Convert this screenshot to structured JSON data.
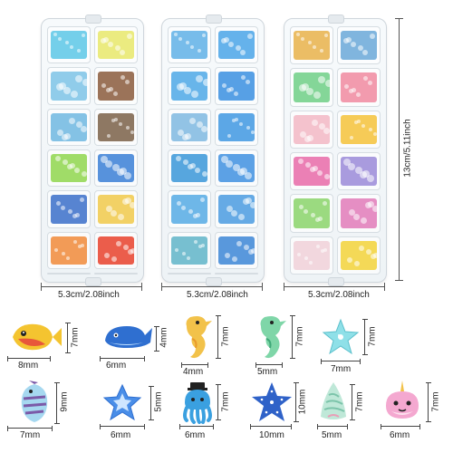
{
  "dimensions": {
    "box_width_1": "5.3cm/2.08inch",
    "box_width_2": "5.3cm/2.08inch",
    "box_width_3": "5.3cm/2.08inch",
    "box_height": "13cm/5.11inch"
  },
  "boxes": [
    {
      "cells": [
        "#5cc7e6",
        "#e8e86a",
        "#7cc3e6",
        "#8a5a3c",
        "#6fb7e0",
        "#7a6048",
        "#8fd64d",
        "#3a7fd6",
        "#3a6fc9",
        "#f0c94a",
        "#f08a3a",
        "#e8412c",
        "#3f8f6a",
        "#6fbf7a"
      ]
    },
    {
      "cells": [
        "#5fb0e6",
        "#4aa5e8",
        "#4da8e6",
        "#3a8fe0",
        "#7fb8e0",
        "#3f98e2",
        "#3a96d8",
        "#3f90e0",
        "#55aae4",
        "#4a9be0",
        "#5fb4c8",
        "#3c86d6",
        "#3f8ad8",
        "#2f78cf"
      ]
    },
    {
      "cells": [
        "#e8b24a",
        "#6aa8d8",
        "#6fcf86",
        "#f08aa0",
        "#f2b7c4",
        "#f5c23a",
        "#e86aa8",
        "#9a8ad8",
        "#8ad46a",
        "#e07ab8",
        "#f0d0d8",
        "#f2d23a"
      ]
    }
  ],
  "samples": [
    {
      "name": "yellow-fish",
      "w": "8mm",
      "h": "7mm"
    },
    {
      "name": "blue-whale",
      "w": "6mm",
      "h": "4mm"
    },
    {
      "name": "seahorse",
      "w": "4mm",
      "h": "7mm"
    },
    {
      "name": "green-seahorse",
      "w": "5mm",
      "h": "7mm"
    },
    {
      "name": "starfish-light",
      "w": "7mm",
      "h": "7mm"
    },
    {
      "name": "striped-fish",
      "w": "7mm",
      "h": "9mm"
    },
    {
      "name": "blue-star",
      "w": "6mm",
      "h": "5mm"
    },
    {
      "name": "octopus",
      "w": "6mm",
      "h": "7mm"
    },
    {
      "name": "blue-starfish",
      "w": "10mm",
      "h": "10mm"
    },
    {
      "name": "shell",
      "w": "5mm",
      "h": "7mm"
    },
    {
      "name": "narwhal",
      "w": "6mm",
      "h": "7mm"
    }
  ]
}
